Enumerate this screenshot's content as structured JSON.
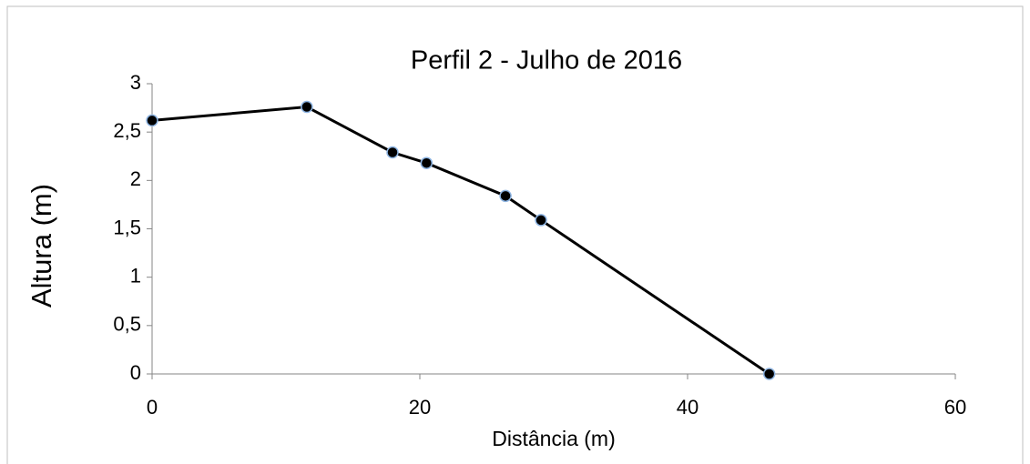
{
  "chart_data": {
    "type": "line",
    "title": "Perfil 2 - Julho de 2016",
    "x_label": "Distância (m)",
    "y_label": "Altura (m)",
    "x": [
      0,
      11.56,
      17.96,
      20.5,
      26.4,
      29.05,
      46.1
    ],
    "series": [
      {
        "name": "Perfil 2",
        "color": "#000000",
        "marker_edge": "#8db4e2",
        "values": [
          2.62,
          2.76,
          2.29,
          2.18,
          1.84,
          1.59,
          0
        ]
      }
    ],
    "xlim": [
      0,
      60
    ],
    "xticks": [
      0,
      20,
      40,
      60
    ],
    "ylim": [
      0,
      3
    ],
    "yticks": [
      0,
      {
        "value": 0.5,
        "label": "0,5"
      },
      1,
      {
        "value": 1.5,
        "label": "1,5"
      },
      2,
      {
        "value": 2.5,
        "label": "2,5"
      },
      3
    ]
  }
}
